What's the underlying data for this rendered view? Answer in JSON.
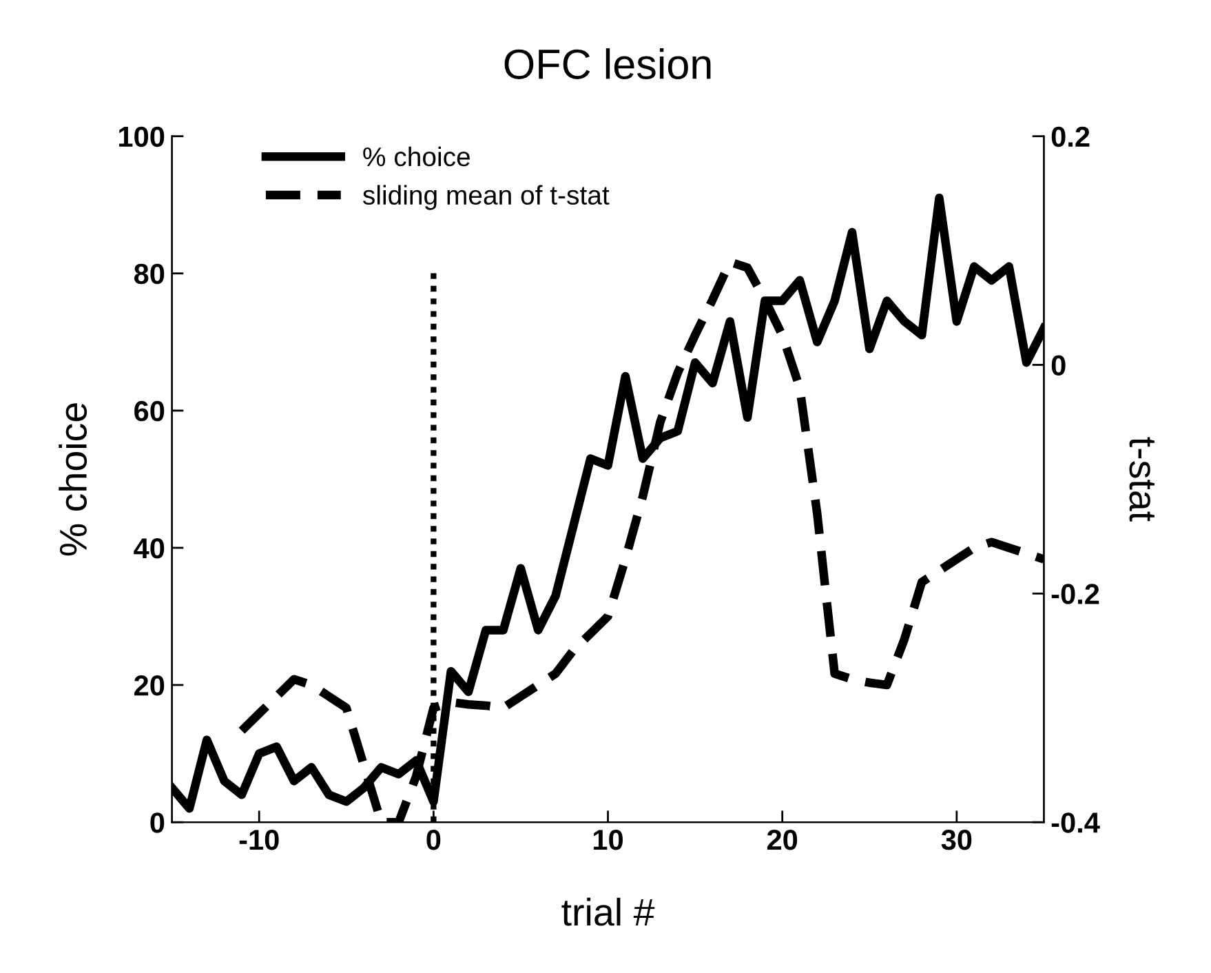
{
  "chart_data": {
    "type": "line",
    "title": "OFC lesion",
    "xlabel": "trial #",
    "ylabel": "% choice",
    "y2label": "t-stat",
    "xlim": [
      -15,
      35
    ],
    "xticks": [
      {
        "value": -10,
        "label": "-10"
      },
      0,
      10,
      20,
      30
    ],
    "ylim": [
      0,
      100
    ],
    "yticks": [
      0,
      20,
      40,
      60,
      80,
      100
    ],
    "y2lim": [
      -0.4,
      0.2
    ],
    "y2ticks": [
      {
        "value": -0.4,
        "label": "-0.4"
      },
      {
        "value": -0.2,
        "label": "-0.2"
      },
      0,
      0.2
    ],
    "legend": "top left",
    "grid": false,
    "ref_lines": [
      {
        "axis": "x",
        "value": 0,
        "line_style": "dotted",
        "color": "#000000"
      }
    ],
    "series": [
      {
        "name": "% choice",
        "color": "#000000",
        "line_style": "solid",
        "x": [
          -15,
          -14,
          -13,
          -12,
          -11,
          -10,
          -9,
          -8,
          -7,
          -6,
          -5,
          -4,
          -3,
          -2,
          -1,
          0,
          1,
          2,
          3,
          4,
          5,
          6,
          7,
          8,
          9,
          10,
          11,
          12,
          13,
          14,
          15,
          16,
          17,
          18,
          19,
          20,
          21,
          22,
          23,
          24,
          25,
          26,
          27,
          28,
          29,
          30,
          31,
          32,
          33,
          34,
          35
        ],
        "values": [
          5,
          2,
          12,
          6,
          4,
          10,
          11,
          6,
          8,
          4,
          3,
          5,
          8,
          7,
          9,
          3,
          22,
          19,
          28,
          28,
          37,
          28,
          33,
          43,
          53,
          52,
          65,
          53,
          56,
          57,
          67,
          64,
          73,
          59,
          76,
          76,
          79,
          70,
          76,
          86,
          69,
          76,
          73,
          71,
          91,
          73,
          81,
          79,
          81,
          67,
          72
        ]
      },
      {
        "name": "sliding mean of t-stat",
        "color": "#000000",
        "line_style": "dashed",
        "axis": "y2",
        "x": [
          -11,
          -10,
          -9,
          -8,
          -7,
          -6,
          -5,
          -4,
          -3,
          -2,
          -1,
          0,
          1,
          2,
          3,
          4,
          5,
          6,
          7,
          8,
          9,
          10,
          11,
          12,
          13,
          14,
          15,
          16,
          17,
          18,
          19,
          20,
          21,
          22,
          23,
          24,
          25,
          26,
          27,
          28,
          29,
          30,
          31,
          32,
          33,
          34,
          35
        ],
        "values": [
          -0.32,
          -0.305,
          -0.29,
          -0.275,
          -0.28,
          -0.29,
          -0.3,
          -0.35,
          -0.4,
          -0.4,
          -0.36,
          -0.3,
          -0.295,
          -0.297,
          -0.298,
          -0.3,
          -0.29,
          -0.28,
          -0.27,
          -0.25,
          -0.235,
          -0.22,
          -0.17,
          -0.115,
          -0.05,
          -0.007,
          0.026,
          0.057,
          0.09,
          0.085,
          0.057,
          0.026,
          -0.02,
          -0.13,
          -0.27,
          -0.275,
          -0.278,
          -0.28,
          -0.24,
          -0.19,
          -0.18,
          -0.17,
          -0.16,
          -0.155,
          -0.16,
          -0.165,
          -0.17
        ]
      }
    ]
  }
}
